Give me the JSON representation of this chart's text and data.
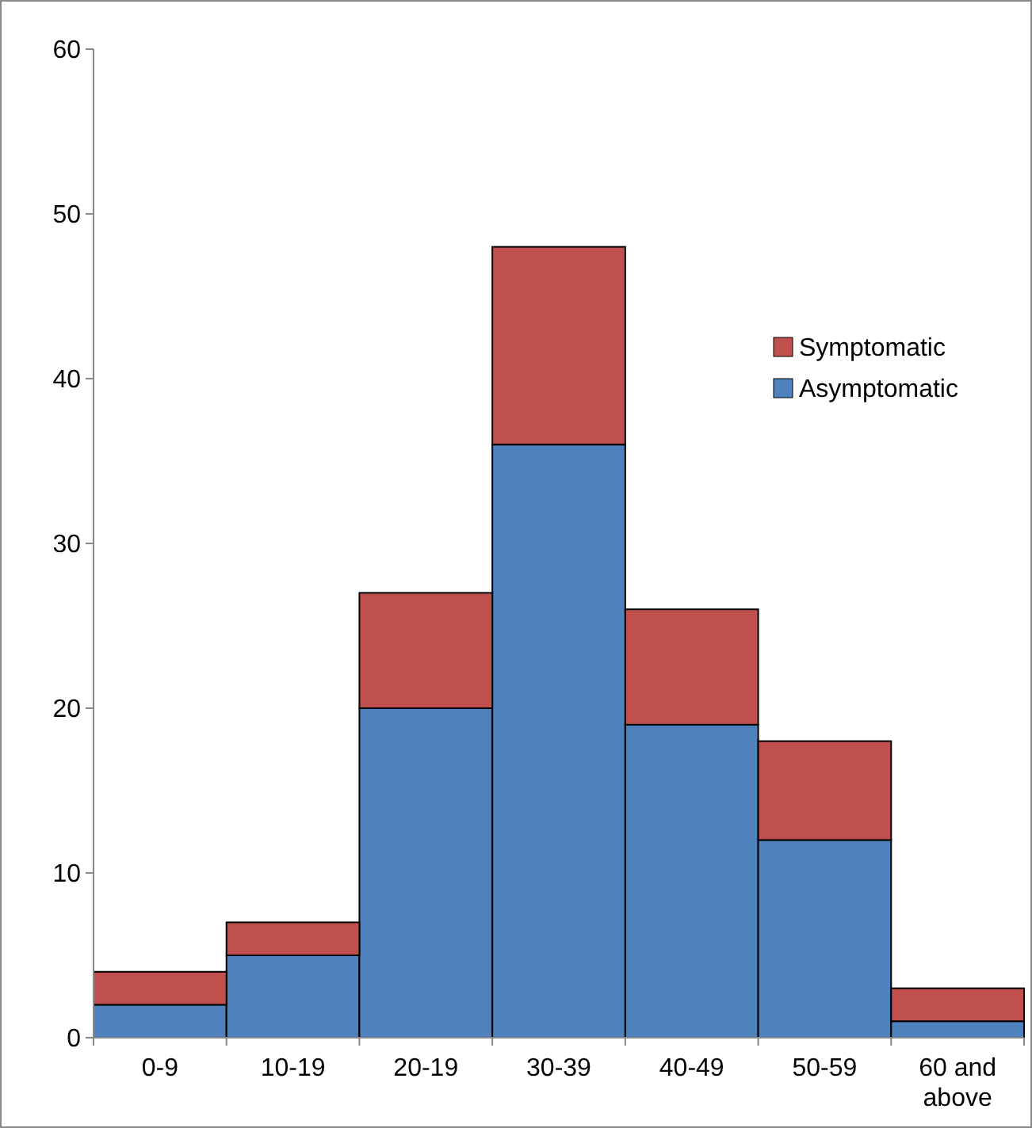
{
  "chart_data": {
    "type": "bar",
    "stacked": true,
    "categories": [
      "0-9",
      "10-19",
      "20-19",
      "30-39",
      "40-49",
      "50-59",
      "60 and above"
    ],
    "series": [
      {
        "name": "Asymptomatic",
        "color": "#4f81bd",
        "values": [
          2,
          5,
          20,
          36,
          19,
          12,
          1
        ]
      },
      {
        "name": "Symptomatic",
        "color": "#c0504d",
        "values": [
          2,
          2,
          7,
          12,
          7,
          6,
          2
        ]
      }
    ],
    "ylim": [
      0,
      60
    ],
    "yticks": [
      0,
      10,
      20,
      30,
      40,
      50,
      60
    ],
    "grid": false,
    "legend": "top right"
  }
}
